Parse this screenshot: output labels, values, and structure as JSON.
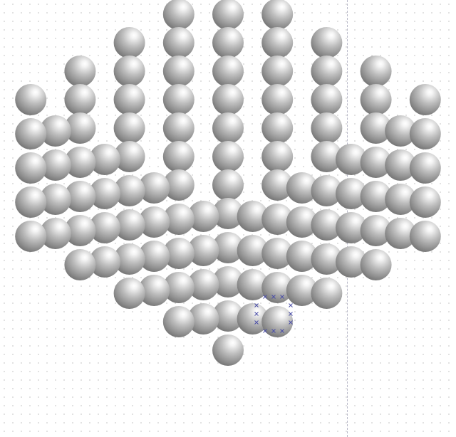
{
  "canvas": {
    "background": "#ffffff",
    "grid": "dotted",
    "guide_line": "vertical-dashed"
  },
  "structure": {
    "type": "atomic-lattice-cube",
    "lattice": "face-centered-cubic",
    "visible_faces": [
      "left-face",
      "right-face",
      "top-face"
    ],
    "sphere_color": "#9a9a9a",
    "highlight_color": "#ffffff"
  },
  "selection": {
    "selected_object": "sphere",
    "handle_icon": "x-mark-handle-icon",
    "handle_color": "#4b4fa8"
  }
}
